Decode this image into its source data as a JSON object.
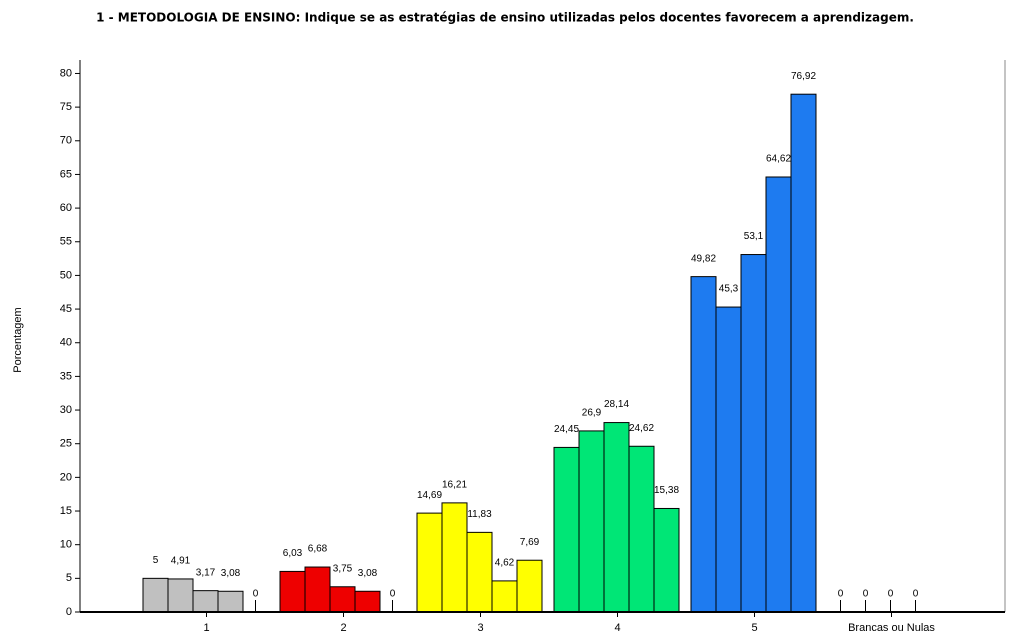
{
  "chart_data": {
    "type": "bar",
    "title": "1 - METODOLOGIA DE ENSINO: Indique se as estratégias de ensino utilizadas pelos docentes favorecem a aprendizagem.",
    "y_label": "Porcentagem",
    "categories": [
      "1",
      "2",
      "3",
      "4",
      "5",
      "Brancas ou Nulas"
    ],
    "colors": [
      "#c0c0c0",
      "#ee0000",
      "#ffff00",
      "#00e676",
      "#1e7bf0",
      "#000000"
    ],
    "series": [
      {
        "values": [
          5,
          6.03,
          14.69,
          24.45,
          49.82,
          0
        ],
        "value_labels": [
          "5",
          "6,03",
          "14,69",
          "24,45",
          "49,82",
          "0"
        ]
      },
      {
        "values": [
          4.91,
          6.68,
          16.21,
          26.9,
          45.3,
          0
        ],
        "value_labels": [
          "4,91",
          "6,68",
          "16,21",
          "26,9",
          "45,3",
          "0"
        ]
      },
      {
        "values": [
          3.17,
          3.75,
          11.83,
          28.14,
          53.1,
          0
        ],
        "value_labels": [
          "3,17",
          "3,75",
          "11,83",
          "28,14",
          "53,1",
          "0"
        ]
      },
      {
        "values": [
          3.08,
          3.08,
          4.62,
          24.62,
          64.62,
          0
        ],
        "value_labels": [
          "3,08",
          "3,08",
          "4,62",
          "24,62",
          "64,62",
          "0"
        ]
      },
      {
        "values": [
          0,
          0,
          7.69,
          15.38,
          76.92,
          null
        ],
        "value_labels": [
          "0",
          "0",
          "7,69",
          "15,38",
          "76,92",
          null
        ]
      }
    ],
    "ylim": [
      0,
      82
    ],
    "yticks": [
      0,
      5,
      10,
      15,
      20,
      25,
      30,
      35,
      40,
      45,
      50,
      55,
      60,
      65,
      70,
      75,
      80
    ]
  }
}
